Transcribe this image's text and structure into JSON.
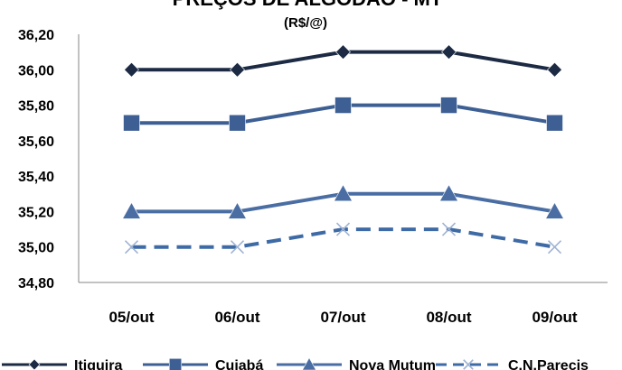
{
  "chart_data": {
    "type": "line",
    "title": "PREÇOS DE ALGODÃO - MT",
    "subtitle": "(R$/@)",
    "xlabel": "",
    "ylabel": "",
    "categories": [
      "05/out",
      "06/out",
      "07/out",
      "08/out",
      "09/out"
    ],
    "ylim": [
      34.8,
      36.2
    ],
    "yticks": [
      "34,80",
      "35,00",
      "35,20",
      "35,40",
      "35,60",
      "35,80",
      "36,00",
      "36,20"
    ],
    "grid": false,
    "legend_position": "bottom",
    "series": [
      {
        "name": "Itiguira",
        "values": [
          36.0,
          36.0,
          36.1,
          36.1,
          36.0
        ],
        "color": "#1c2a44",
        "marker": "diamond",
        "dash": "solid"
      },
      {
        "name": "Cuiabá",
        "values": [
          35.7,
          35.7,
          35.8,
          35.8,
          35.7
        ],
        "color": "#3d5f93",
        "marker": "square",
        "dash": "solid"
      },
      {
        "name": "Nova Mutum",
        "values": [
          35.2,
          35.2,
          35.3,
          35.3,
          35.2
        ],
        "color": "#4a6ea3",
        "marker": "triangle",
        "dash": "solid"
      },
      {
        "name": "C.N.Parecis",
        "values": [
          35.0,
          35.0,
          35.1,
          35.1,
          35.0
        ],
        "color": "#3e6aa5",
        "marker": "x",
        "dash": "dashed"
      }
    ]
  }
}
